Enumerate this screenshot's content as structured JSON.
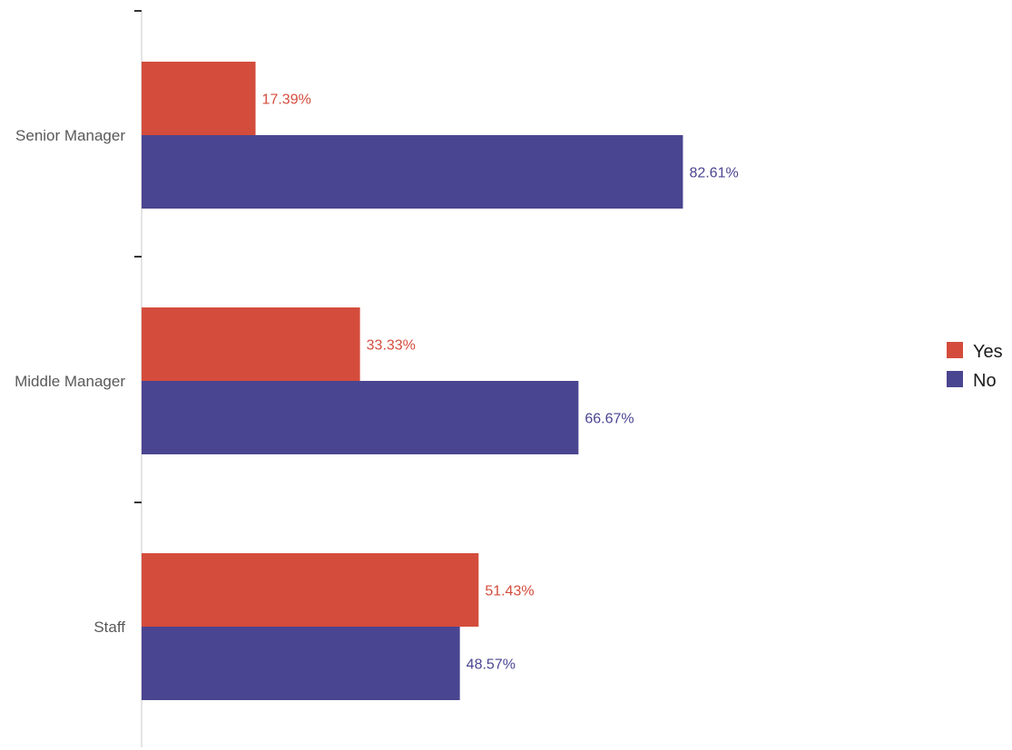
{
  "chart_data": {
    "type": "bar",
    "orientation": "horizontal",
    "categories": [
      "Senior Manager",
      "Middle Manager",
      "Staff"
    ],
    "series": [
      {
        "name": "Yes",
        "color": "#d44c3c",
        "values": [
          17.39,
          33.33,
          51.43
        ],
        "labels": [
          "17.39%",
          "33.33%",
          "51.43%"
        ]
      },
      {
        "name": "No",
        "color": "#4a4590",
        "values": [
          82.61,
          66.67,
          48.57
        ],
        "labels": [
          "82.61%",
          "66.67%",
          "48.57%"
        ]
      }
    ],
    "xlim": [
      0,
      100
    ],
    "grid": false,
    "legend": "right",
    "title": "",
    "xlabel": "",
    "ylabel": ""
  }
}
